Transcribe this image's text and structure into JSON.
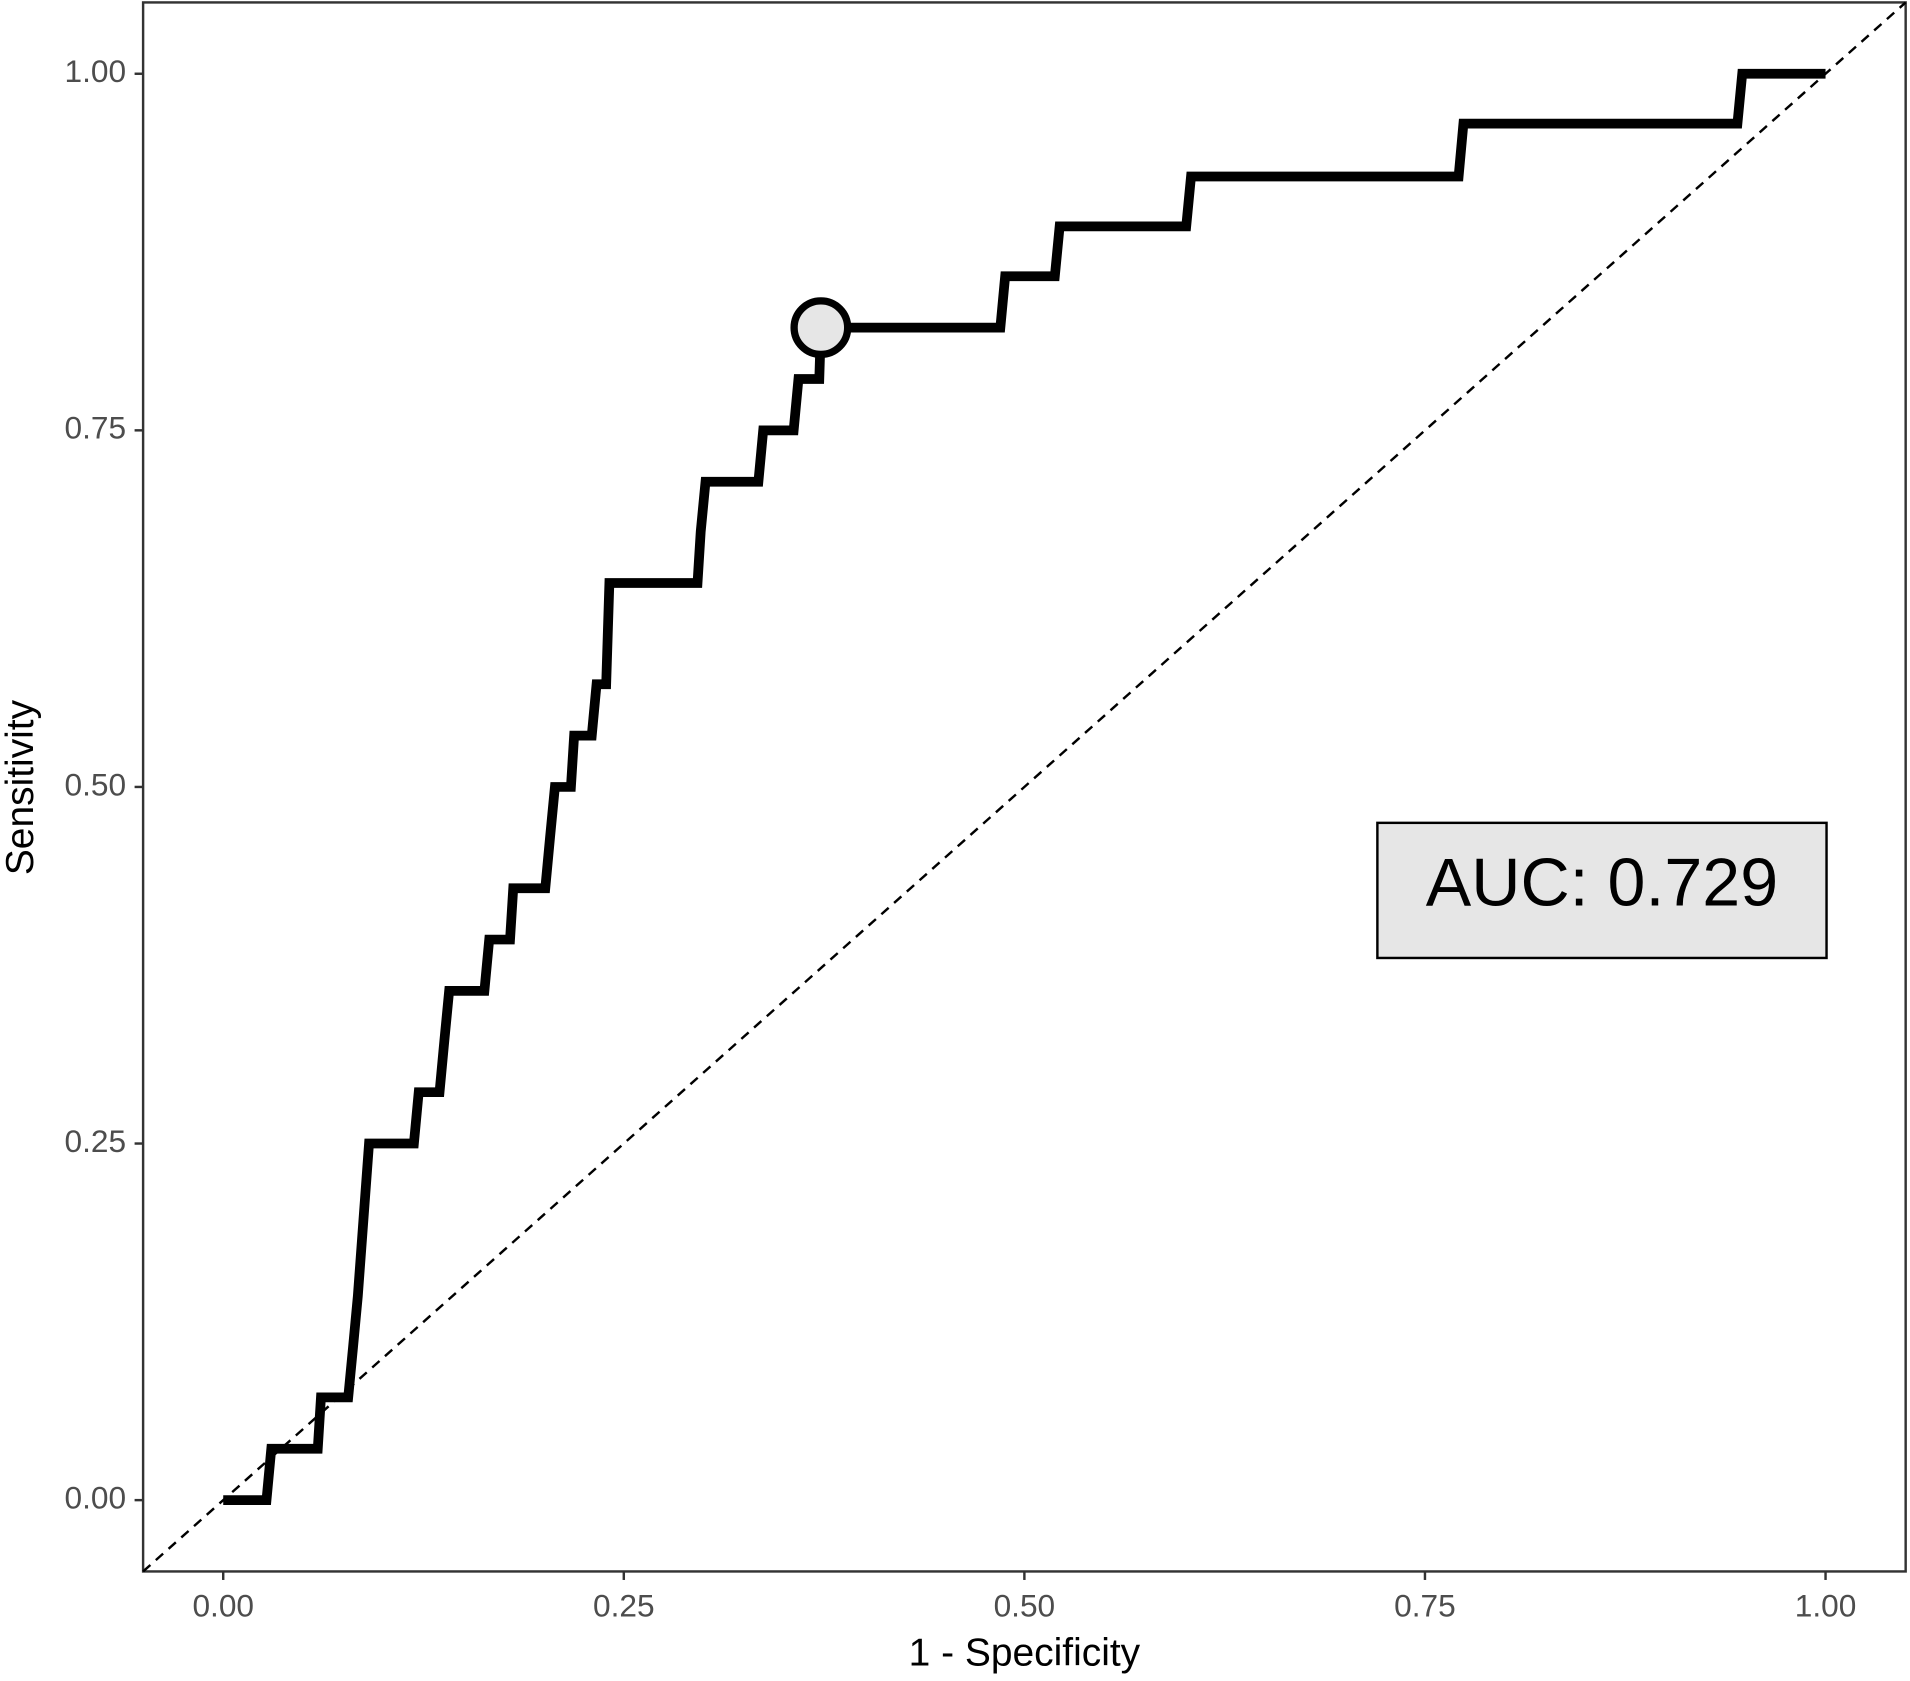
{
  "chart_data": {
    "type": "line",
    "x_label": "1 - Specificity",
    "y_label": "Sensitivity",
    "annotation": "AUC: 0.729",
    "color": "#000000",
    "x": [
      0,
      0.027,
      0.03,
      0.059,
      0.061,
      0.078,
      0.081,
      0.084,
      0.091,
      0.119,
      0.122,
      0.135,
      0.138,
      0.141,
      0.163,
      0.166,
      0.179,
      0.181,
      0.201,
      0.204,
      0.207,
      0.217,
      0.219,
      0.23,
      0.233,
      0.239,
      0.241,
      0.296,
      0.298,
      0.301,
      0.334,
      0.337,
      0.356,
      0.359,
      0.372,
      0.373,
      0.485,
      0.488,
      0.519,
      0.522,
      0.601,
      0.604,
      0.771,
      0.774,
      0.945,
      0.948,
      1
    ],
    "values": [
      0,
      0,
      0.036,
      0.036,
      0.072,
      0.072,
      0.107,
      0.143,
      0.25,
      0.25,
      0.286,
      0.286,
      0.322,
      0.357,
      0.357,
      0.393,
      0.393,
      0.429,
      0.429,
      0.465,
      0.5,
      0.5,
      0.536,
      0.536,
      0.572,
      0.572,
      0.643,
      0.643,
      0.679,
      0.714,
      0.714,
      0.75,
      0.75,
      0.786,
      0.786,
      0.822,
      0.822,
      0.858,
      0.858,
      0.893,
      0.893,
      0.928,
      0.928,
      0.965,
      0.965,
      1,
      1
    ],
    "highlight": {
      "x": 0.373,
      "y": 0.822
    },
    "xlim": [
      -0.05,
      1.05
    ],
    "ylim": [
      -0.05,
      1.05
    ],
    "xticks": [
      {
        "value": 0,
        "label": "0.00"
      },
      {
        "value": 0.25,
        "label": "0.25"
      },
      {
        "value": 0.5,
        "label": "0.50"
      },
      {
        "value": 0.75,
        "label": "0.75"
      },
      {
        "value": 1,
        "label": "1.00"
      }
    ],
    "yticks": [
      {
        "value": 0,
        "label": "0.00"
      },
      {
        "value": 0.25,
        "label": "0.25"
      },
      {
        "value": 0.5,
        "label": "0.50"
      },
      {
        "value": 0.75,
        "label": "0.75"
      },
      {
        "value": 1,
        "label": "1.00"
      }
    ],
    "grid": false
  }
}
